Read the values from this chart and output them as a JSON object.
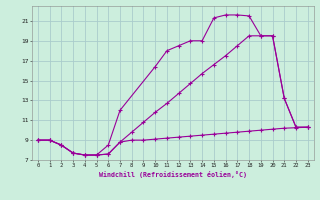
{
  "xlabel": "Windchill (Refroidissement éolien,°C)",
  "bg_color": "#cceedd",
  "grid_color": "#aacccc",
  "line_color": "#990099",
  "xlim": [
    -0.5,
    23.5
  ],
  "ylim": [
    7,
    22.5
  ],
  "xticks": [
    0,
    1,
    2,
    3,
    4,
    5,
    6,
    7,
    8,
    9,
    10,
    11,
    12,
    13,
    14,
    15,
    16,
    17,
    18,
    19,
    20,
    21,
    22,
    23
  ],
  "yticks": [
    7,
    9,
    11,
    13,
    15,
    17,
    19,
    21
  ],
  "line1_x": [
    0,
    1,
    2,
    3,
    4,
    5,
    6,
    7,
    8,
    9,
    10,
    11,
    12,
    13,
    14,
    15,
    16,
    17,
    18,
    19,
    20,
    21,
    22,
    23
  ],
  "line1_y": [
    9.0,
    9.0,
    8.5,
    7.7,
    7.5,
    7.5,
    7.6,
    8.8,
    9.0,
    9.0,
    9.1,
    9.2,
    9.3,
    9.4,
    9.5,
    9.6,
    9.7,
    9.8,
    9.9,
    10.0,
    10.1,
    10.2,
    10.25,
    10.3
  ],
  "line2_x": [
    0,
    1,
    2,
    3,
    4,
    5,
    6,
    7,
    10,
    11,
    12,
    13,
    14,
    15,
    16,
    17,
    18,
    19,
    20,
    21,
    22,
    23
  ],
  "line2_y": [
    9.0,
    9.0,
    8.5,
    7.7,
    7.5,
    7.5,
    8.5,
    12.0,
    16.4,
    18.0,
    18.5,
    19.0,
    19.0,
    21.3,
    21.6,
    21.6,
    21.5,
    19.5,
    19.5,
    13.2,
    10.3,
    10.3
  ],
  "line3_x": [
    0,
    1,
    2,
    3,
    4,
    5,
    6,
    7,
    8,
    9,
    10,
    11,
    12,
    13,
    14,
    15,
    16,
    17,
    18,
    19,
    20,
    21,
    22,
    23
  ],
  "line3_y": [
    9.0,
    9.0,
    8.5,
    7.7,
    7.5,
    7.5,
    7.6,
    8.8,
    9.8,
    10.8,
    11.8,
    12.7,
    13.7,
    14.7,
    15.7,
    16.6,
    17.5,
    18.5,
    19.5,
    19.5,
    19.5,
    13.2,
    10.3,
    10.3
  ]
}
